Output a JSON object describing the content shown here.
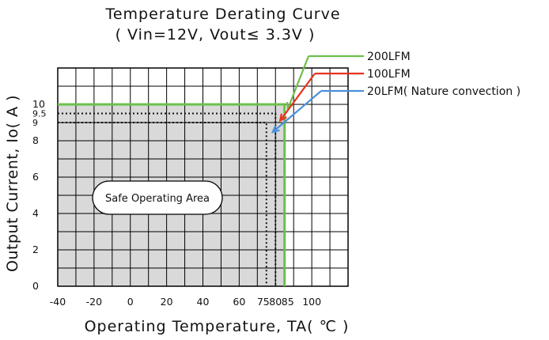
{
  "chart_data": {
    "type": "line",
    "title": "Temperature Derating Curve",
    "subtitle": "( Vin=12V, Vout≤ 3.3V )",
    "xlabel": "Operating Temperature, TA( ℃ )",
    "ylabel": "Output Current, Io( A )",
    "xlim": [
      -40,
      120
    ],
    "ylim": [
      0,
      12
    ],
    "grid": true,
    "x_ticks": [
      -40,
      -20,
      0,
      20,
      40,
      60,
      75,
      80,
      85,
      100
    ],
    "x_tick_labels": [
      "-40",
      "-20",
      "0",
      "20",
      "40",
      "60",
      "75",
      "80",
      "85",
      "100"
    ],
    "y_ticks": [
      0,
      2,
      4,
      6,
      8,
      9,
      9.5,
      10
    ],
    "y_tick_labels": [
      "0",
      "2",
      "4",
      "6",
      "8",
      "9",
      "9.5",
      "10"
    ],
    "series": [
      {
        "name": "200LFM",
        "color": "#6cc04a",
        "style": "solid",
        "x": [
          -40,
          85,
          85
        ],
        "y": [
          10,
          10,
          0
        ]
      },
      {
        "name": "100LFM",
        "color": "#e8321e",
        "style": "dotted",
        "x": [
          -40,
          80,
          80
        ],
        "y": [
          9.5,
          9.5,
          0
        ]
      },
      {
        "name": "20LFM( Nature convection )",
        "color": "#4a90d9",
        "style": "dotted",
        "x": [
          -40,
          75,
          75
        ],
        "y": [
          9,
          9,
          0
        ]
      }
    ],
    "annotations": [
      {
        "text": "Safe Operating Area"
      }
    ],
    "safe_area_color": "#d9d9d9"
  }
}
